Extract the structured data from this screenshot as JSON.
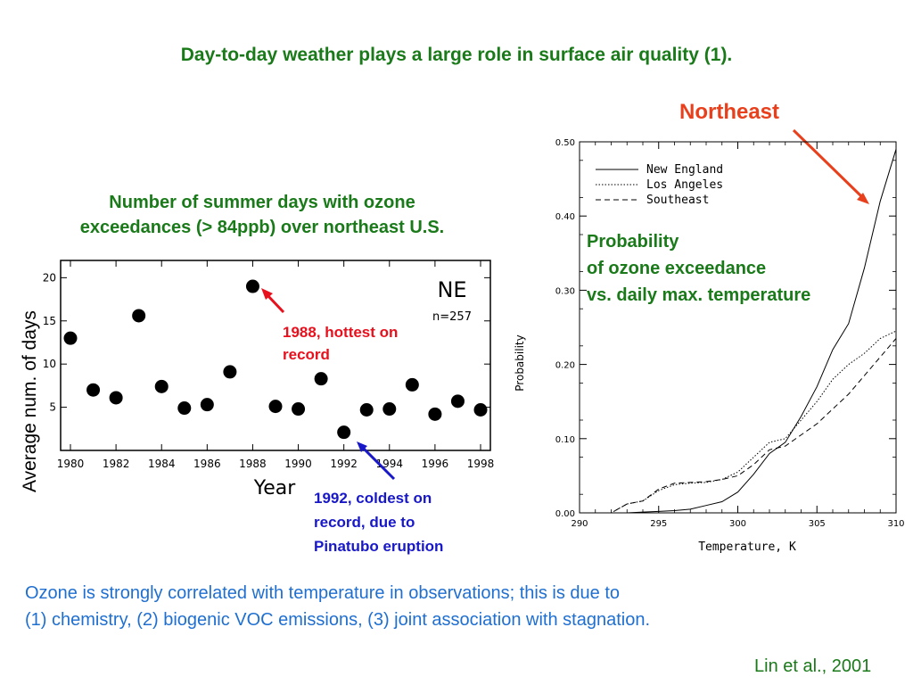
{
  "slide": {
    "title": "Day-to-day weather plays a large role in surface air quality (1).",
    "northeast_label": "Northeast",
    "left_title_line1": "Number of summer days with ozone",
    "left_title_line2": "exceedances (> 84ppb) over northeast U.S.",
    "left_ylabel": "Average num. of days",
    "annot_1988_line1": "1988, hottest on",
    "annot_1988_line2": "record",
    "annot_1992_line1": "1992, coldest on",
    "annot_1992_line2": "record, due to",
    "annot_1992_line3": "Pinatubo eruption",
    "right_title_line1": "Probability",
    "right_title_line2": "of ozone exceedance",
    "right_title_line3": "vs. daily max. temperature",
    "bottom_line1": "Ozone is strongly correlated with temperature in observations; this is due to",
    "bottom_line2": "(1) chemistry, (2) biogenic VOC emissions, (3) joint association with stagnation.",
    "citation": "Lin et al., 2001",
    "colors": {
      "green": "#1a7a1a",
      "orange": "#e8401c",
      "red": "#e8101c",
      "blue": "#1818c8",
      "text_blue": "#1f6fd0"
    }
  },
  "chart_data": [
    {
      "type": "scatter",
      "xlabel": "Year",
      "ylabel": "",
      "xlim": [
        1980,
        1998
      ],
      "ylim": [
        0,
        22
      ],
      "xticks": [
        1980,
        1982,
        1984,
        1986,
        1988,
        1990,
        1992,
        1994,
        1996,
        1998
      ],
      "yticks": [
        5,
        10,
        15,
        20
      ],
      "inset_label": "NE",
      "inset_n": "n=257",
      "points": [
        {
          "x": 1980,
          "y": 13.0
        },
        {
          "x": 1981,
          "y": 7.0
        },
        {
          "x": 1982,
          "y": 6.1
        },
        {
          "x": 1983,
          "y": 15.6
        },
        {
          "x": 1984,
          "y": 7.4
        },
        {
          "x": 1985,
          "y": 4.9
        },
        {
          "x": 1986,
          "y": 5.3
        },
        {
          "x": 1987,
          "y": 9.1
        },
        {
          "x": 1988,
          "y": 19.0
        },
        {
          "x": 1989,
          "y": 5.1
        },
        {
          "x": 1990,
          "y": 4.8
        },
        {
          "x": 1991,
          "y": 8.3
        },
        {
          "x": 1992,
          "y": 2.1
        },
        {
          "x": 1993,
          "y": 4.7
        },
        {
          "x": 1994,
          "y": 4.8
        },
        {
          "x": 1995,
          "y": 7.6
        },
        {
          "x": 1996,
          "y": 4.2
        },
        {
          "x": 1997,
          "y": 5.7
        },
        {
          "x": 1998,
          "y": 4.7
        }
      ]
    },
    {
      "type": "line",
      "xlabel": "Temperature, K",
      "ylabel": "Probability",
      "xlim": [
        290,
        310
      ],
      "ylim": [
        0,
        0.5
      ],
      "xticks": [
        290,
        295,
        300,
        305,
        310
      ],
      "yticks": [
        0.0,
        0.1,
        0.2,
        0.3,
        0.4,
        0.5
      ],
      "ytick_labels": [
        "0.00",
        "0.10",
        "0.20",
        "0.30",
        "0.40",
        "0.50"
      ],
      "legend": "top-left",
      "series": [
        {
          "name": "New England",
          "style": "solid",
          "x": [
            290,
            292,
            293,
            294,
            295,
            296,
            297,
            298,
            299,
            300,
            301,
            302,
            303,
            304,
            305,
            306,
            307,
            308,
            309,
            310
          ],
          "y": [
            0.0,
            0.0,
            0.0,
            0.001,
            0.002,
            0.003,
            0.005,
            0.01,
            0.015,
            0.028,
            0.052,
            0.08,
            0.095,
            0.13,
            0.17,
            0.22,
            0.255,
            0.33,
            0.42,
            0.49
          ]
        },
        {
          "name": "Los Angeles",
          "style": "dotted",
          "x": [
            290,
            292,
            293,
            294,
            295,
            296,
            297,
            298,
            299,
            300,
            301,
            302,
            303,
            304,
            305,
            306,
            307,
            308,
            309,
            310
          ],
          "y": [
            0.0,
            0.0,
            0.012,
            0.016,
            0.03,
            0.038,
            0.04,
            0.041,
            0.045,
            0.055,
            0.075,
            0.095,
            0.1,
            0.125,
            0.15,
            0.18,
            0.2,
            0.215,
            0.235,
            0.245
          ]
        },
        {
          "name": "Southeast",
          "style": "dashed",
          "x": [
            290,
            292,
            293,
            294,
            295,
            296,
            297,
            298,
            299,
            300,
            301,
            302,
            303,
            304,
            305,
            306,
            307,
            308,
            309,
            310
          ],
          "y": [
            0.0,
            0.0,
            0.012,
            0.016,
            0.032,
            0.04,
            0.041,
            0.042,
            0.045,
            0.05,
            0.065,
            0.085,
            0.09,
            0.105,
            0.12,
            0.14,
            0.16,
            0.185,
            0.21,
            0.235
          ]
        }
      ]
    }
  ]
}
